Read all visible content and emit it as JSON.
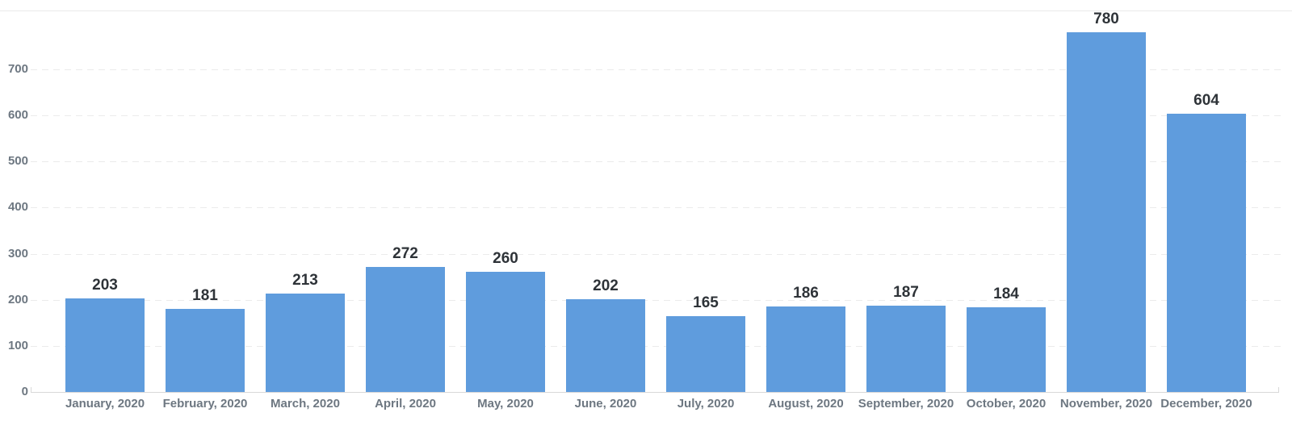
{
  "chart_data": {
    "type": "bar",
    "title": "",
    "xlabel": "",
    "ylabel": "",
    "categories": [
      "January, 2020",
      "February, 2020",
      "March, 2020",
      "April, 2020",
      "May, 2020",
      "June, 2020",
      "July, 2020",
      "August, 2020",
      "September, 2020",
      "October, 2020",
      "November, 2020",
      "December, 2020"
    ],
    "values": [
      203,
      181,
      213,
      272,
      260,
      202,
      165,
      186,
      187,
      184,
      780,
      604
    ],
    "value_labels_shown": true,
    "yticks": [
      0,
      100,
      200,
      300,
      400,
      500,
      600,
      700
    ],
    "ylim": [
      0,
      828
    ],
    "grid": "dashed-horizontal",
    "legend_position": "none",
    "colors": {
      "bar": "#5f9cdd",
      "value_label": "#2e3338",
      "axis_tick_label": "#6d7781",
      "gridline": "#ebebeb",
      "axis_line": "#d8d8d8",
      "background": "#ffffff"
    }
  }
}
